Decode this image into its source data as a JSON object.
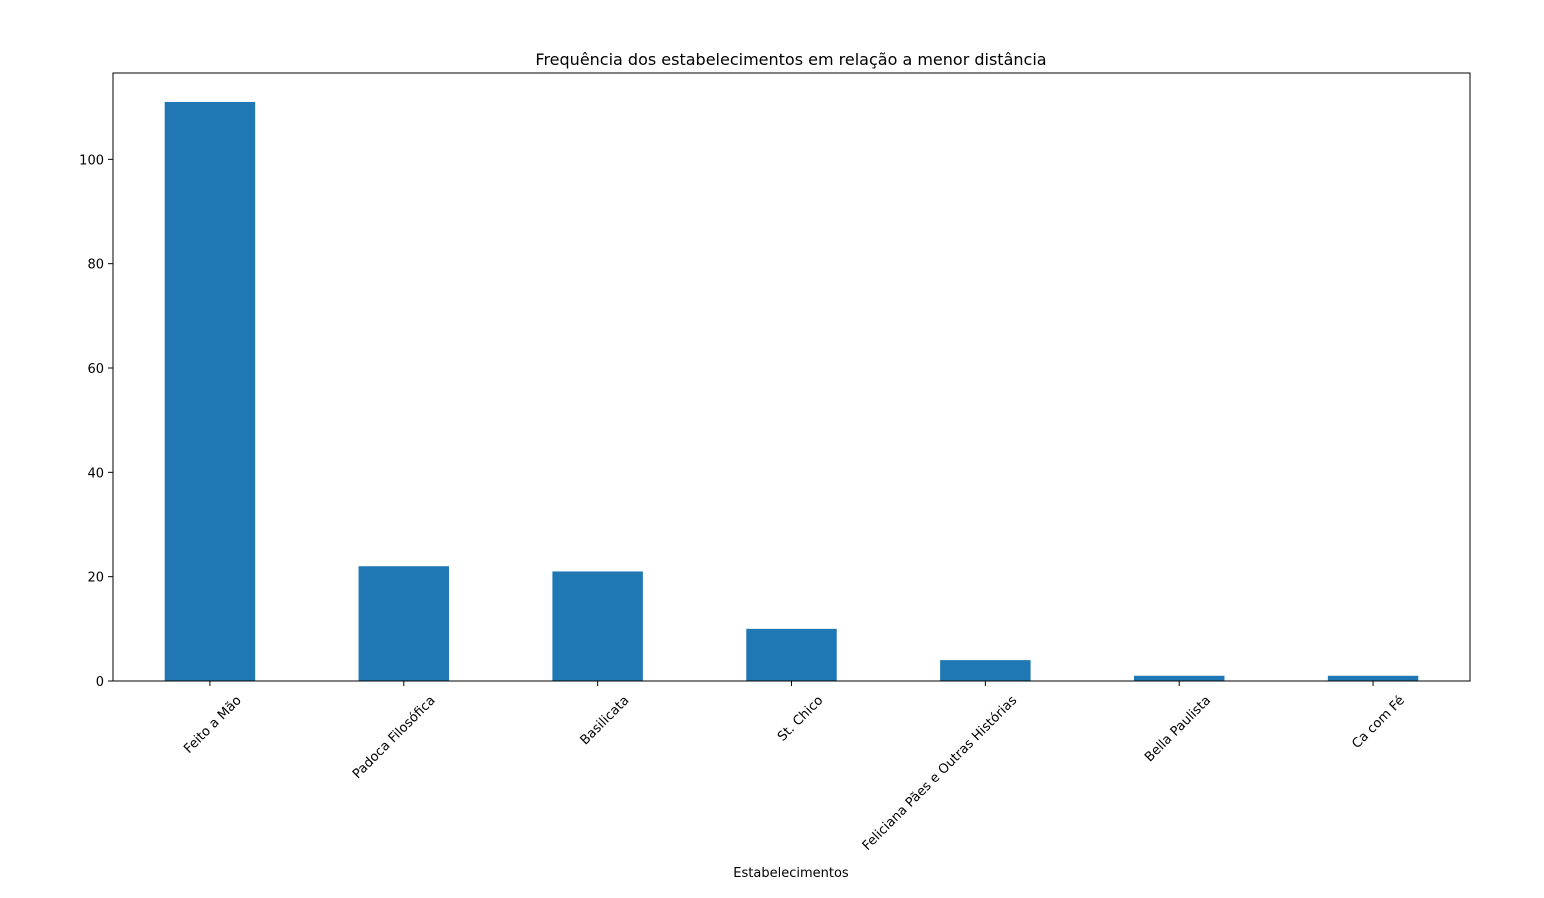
{
  "chart_data": {
    "type": "bar",
    "title": "Frequência dos estabelecimentos em relação a menor distância",
    "xlabel": "Estabelecimentos",
    "ylabel": "",
    "categories": [
      "Feito a Mão",
      "Padoca Filosófica",
      "Basilicata",
      "St. Chico",
      "Feliciana Pães e Outras Histórias",
      "Bella Paulista",
      "Ca com Fé"
    ],
    "values": [
      111,
      22,
      21,
      10,
      4,
      1,
      1
    ],
    "ylim": [
      0,
      116.55
    ],
    "yticks": [
      0,
      20,
      40,
      60,
      80,
      100
    ],
    "grid": false,
    "legend": "none",
    "bar_color": "#1f77b4",
    "xtick_rotation": 45
  }
}
